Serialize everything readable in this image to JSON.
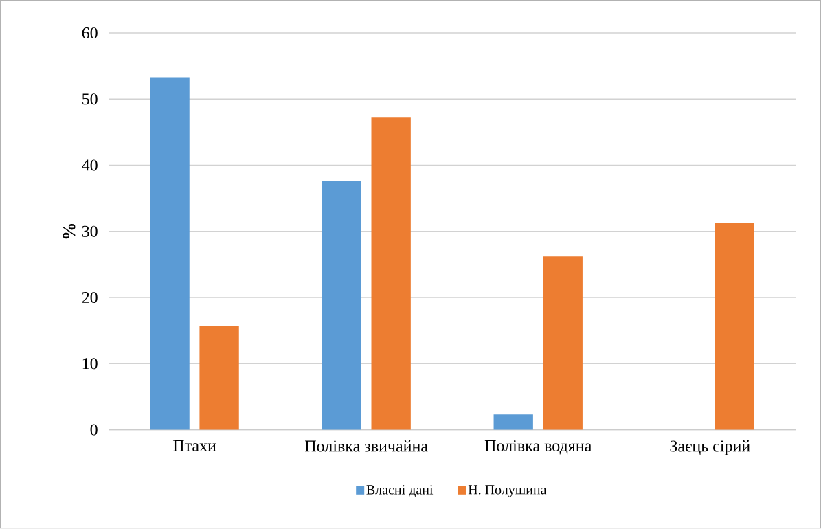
{
  "chart_data": {
    "type": "bar",
    "categories": [
      "Птахи",
      "Полівка звичайна",
      "Полівка водяна",
      "Заєць сірий"
    ],
    "series": [
      {
        "name": "Власні дані",
        "color": "#5b9bd5",
        "values": [
          53.3,
          37.6,
          2.3,
          0
        ]
      },
      {
        "name": "Н. Полушина",
        "color": "#ed7d31",
        "values": [
          15.7,
          47.2,
          26.2,
          31.3
        ]
      }
    ],
    "ylabel": "%",
    "ylim": [
      0,
      60
    ],
    "yticks": [
      0,
      10,
      20,
      30,
      40,
      50,
      60
    ],
    "grid": "y",
    "legend": "bottom"
  }
}
